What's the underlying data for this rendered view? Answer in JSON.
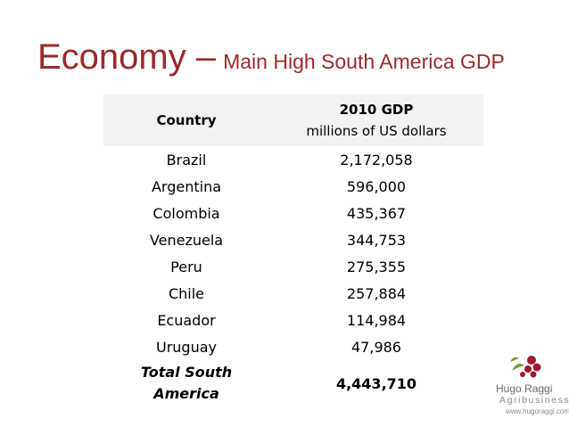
{
  "slide": {
    "title_main": "Economy –",
    "title_sub": "Main High South America GDP"
  },
  "table": {
    "header": {
      "country": "Country",
      "gdp_line1": "2010 GDP",
      "gdp_line2": "millions of US dollars"
    },
    "rows": [
      {
        "country": "Brazil",
        "gdp": "2,172,058"
      },
      {
        "country": "Argentina",
        "gdp": "596,000"
      },
      {
        "country": "Colombia",
        "gdp": "435,367"
      },
      {
        "country": "Venezuela",
        "gdp": "344,753"
      },
      {
        "country": "Peru",
        "gdp": "275,355"
      },
      {
        "country": "Chile",
        "gdp": "257,884"
      },
      {
        "country": "Ecuador",
        "gdp": "114,984"
      },
      {
        "country": "Uruguay",
        "gdp": "47,986"
      }
    ],
    "total": {
      "label_line1": "Total South",
      "label_line2": "America",
      "gdp": "4,443,710"
    }
  },
  "logo": {
    "name": "Hugo Raggi",
    "tagline": "Agribusiness",
    "url": "www.hugoraggi.com",
    "colors": {
      "berry": "#9b1b30",
      "leaf": "#7a9a3a",
      "text": "#6a6a6a"
    }
  }
}
